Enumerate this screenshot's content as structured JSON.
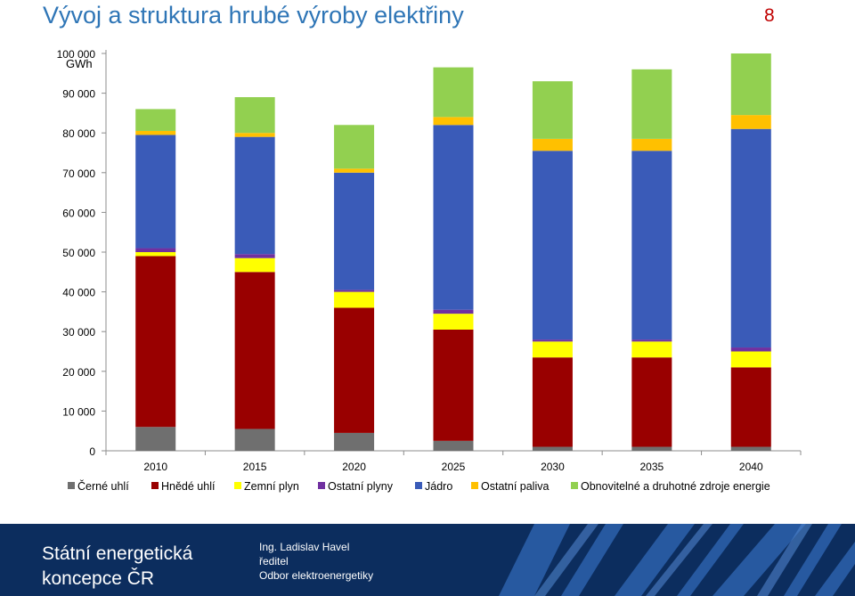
{
  "slide": {
    "title": "Vývoj a struktura hrubé výroby elektřiny",
    "page_number": "8"
  },
  "footer": {
    "organization": "Státní energetická koncepce ČR",
    "presenter_name": "Ing. Ladislav Havel",
    "presenter_role": "ředitel",
    "presenter_department": "Odbor elektroenergetiky"
  },
  "chart_data": {
    "type": "bar",
    "stacked": true,
    "unit": "GWh",
    "categories": [
      "2010",
      "2015",
      "2020",
      "2025",
      "2030",
      "2035",
      "2040"
    ],
    "ylim": [
      0,
      100000
    ],
    "yticks": [
      0,
      10000,
      20000,
      30000,
      40000,
      50000,
      60000,
      70000,
      80000,
      90000,
      100000
    ],
    "ytick_labels": [
      "0",
      "10 000",
      "20 000",
      "30 000",
      "40 000",
      "50 000",
      "60 000",
      "70 000",
      "80 000",
      "90 000",
      "100 000"
    ],
    "grid": false,
    "legend_position": "bottom",
    "series": [
      {
        "name": "Černé uhlí",
        "color": "#6f6f6f",
        "values": [
          6000,
          5500,
          4500,
          2500,
          1000,
          1000,
          1000
        ]
      },
      {
        "name": "Hnědé uhlí",
        "color": "#990000",
        "values": [
          43000,
          39500,
          31500,
          28000,
          22500,
          22500,
          20000
        ]
      },
      {
        "name": "Zemní plyn",
        "color": "#ffff00",
        "values": [
          1000,
          3500,
          4000,
          4000,
          4000,
          4000,
          4000
        ]
      },
      {
        "name": "Ostatní plyny",
        "color": "#7030a0",
        "values": [
          1000,
          1000,
          500,
          1000,
          500,
          500,
          1000
        ]
      },
      {
        "name": "Jádro",
        "color": "#3a5bb8",
        "values": [
          28500,
          29500,
          29500,
          46500,
          47500,
          47500,
          55000
        ]
      },
      {
        "name": "Ostatní paliva",
        "color": "#ffc000",
        "values": [
          1000,
          1000,
          1000,
          2000,
          3000,
          3000,
          3500
        ]
      },
      {
        "name": "Obnovitelné a druhotné zdroje energie",
        "color": "#92d050",
        "values": [
          5500,
          9000,
          11000,
          12500,
          14500,
          17500,
          15500
        ]
      }
    ]
  }
}
